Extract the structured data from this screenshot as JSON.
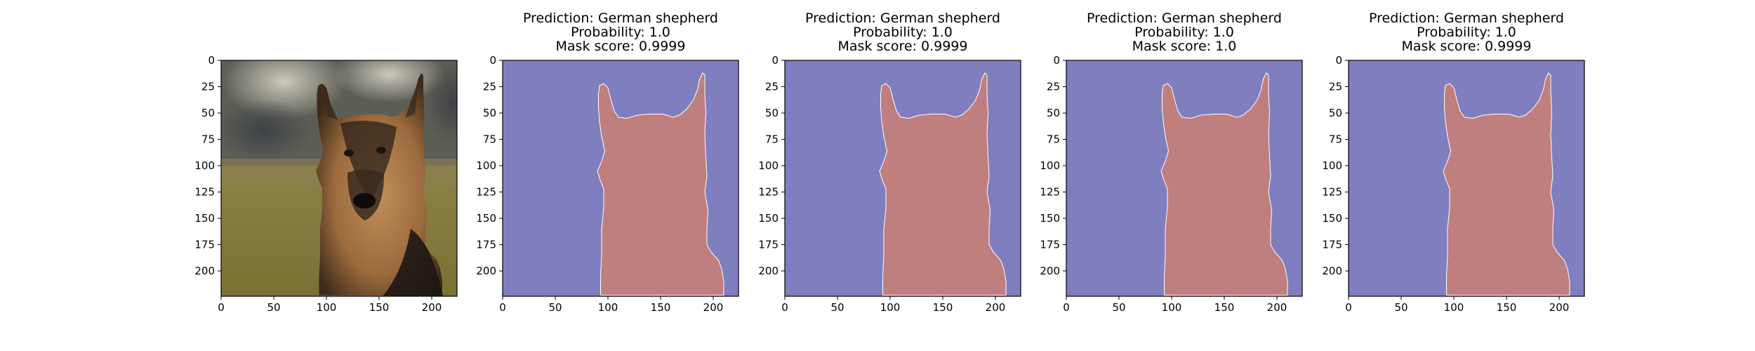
{
  "figure": {
    "panels": [
      {
        "kind": "photo",
        "title_lines": [],
        "description": "german-shepherd-photo",
        "x_ticks": [
          "0",
          "50",
          "100",
          "150",
          "200"
        ],
        "y_ticks": [
          "0",
          "25",
          "50",
          "75",
          "100",
          "125",
          "150",
          "175",
          "200"
        ]
      },
      {
        "kind": "mask",
        "title_lines": [
          "Prediction: German shepherd",
          "Probability: 1.0",
          "Mask score: 0.9999"
        ],
        "x_ticks": [
          "0",
          "50",
          "100",
          "150",
          "200"
        ],
        "y_ticks": [
          "0",
          "25",
          "50",
          "75",
          "100",
          "125",
          "150",
          "175",
          "200"
        ]
      },
      {
        "kind": "mask",
        "title_lines": [
          "Prediction: German shepherd",
          "Probability: 1.0",
          "Mask score: 0.9999"
        ],
        "x_ticks": [
          "0",
          "50",
          "100",
          "150",
          "200"
        ],
        "y_ticks": [
          "0",
          "25",
          "50",
          "75",
          "100",
          "125",
          "150",
          "175",
          "200"
        ]
      },
      {
        "kind": "mask",
        "title_lines": [
          "Prediction: German shepherd",
          "Probability: 1.0",
          "Mask score: 1.0"
        ],
        "x_ticks": [
          "0",
          "50",
          "100",
          "150",
          "200"
        ],
        "y_ticks": [
          "0",
          "25",
          "50",
          "75",
          "100",
          "125",
          "150",
          "175",
          "200"
        ]
      },
      {
        "kind": "mask",
        "title_lines": [
          "Prediction: German shepherd",
          "Probability: 1.0",
          "Mask score: 0.9999"
        ],
        "x_ticks": [
          "0",
          "50",
          "100",
          "150",
          "200"
        ],
        "y_ticks": [
          "0",
          "25",
          "50",
          "75",
          "100",
          "125",
          "150",
          "175",
          "200"
        ]
      }
    ],
    "colors": {
      "background_mask": "#7f7fbf",
      "foreground_mask": "#bf7f7f",
      "axis": "#000000"
    }
  }
}
